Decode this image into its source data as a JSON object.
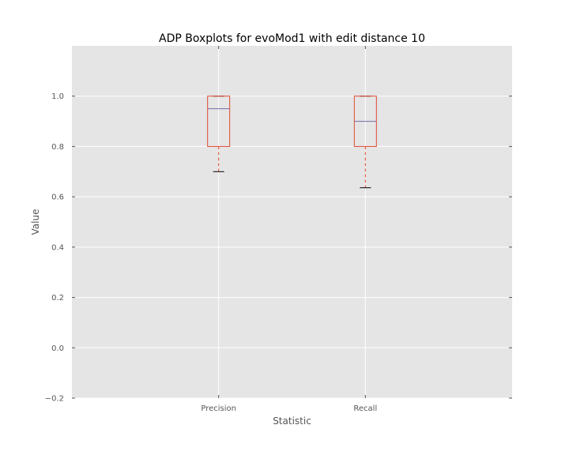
{
  "chart_data": {
    "type": "box",
    "title": "ADP Boxplots for evoMod1 with edit distance 10",
    "xlabel": "Statistic",
    "ylabel": "Value",
    "categories": [
      "Precision",
      "Recall"
    ],
    "boxes": [
      {
        "name": "Precision",
        "whisker_low": 0.7,
        "q1": 0.8,
        "median": 0.95,
        "q3": 1.0,
        "whisker_high": 1.0
      },
      {
        "name": "Recall",
        "whisker_low": 0.636,
        "q1": 0.8,
        "median": 0.9,
        "q3": 1.0,
        "whisker_high": 1.0
      }
    ],
    "ylim": [
      -0.2,
      1.2
    ],
    "yticks": [
      -0.2,
      0.0,
      0.2,
      0.4,
      0.6,
      0.8,
      1.0
    ],
    "ytick_labels": [
      "−0.2",
      "0.0",
      "0.2",
      "0.4",
      "0.6",
      "0.8",
      "1.0"
    ],
    "grid": true,
    "style": {
      "background": "#e5e5e5",
      "grid_color": "#ffffff",
      "box_color": "#e24a33",
      "median_color": "#7a68a6",
      "cap_color": "#000000"
    }
  }
}
